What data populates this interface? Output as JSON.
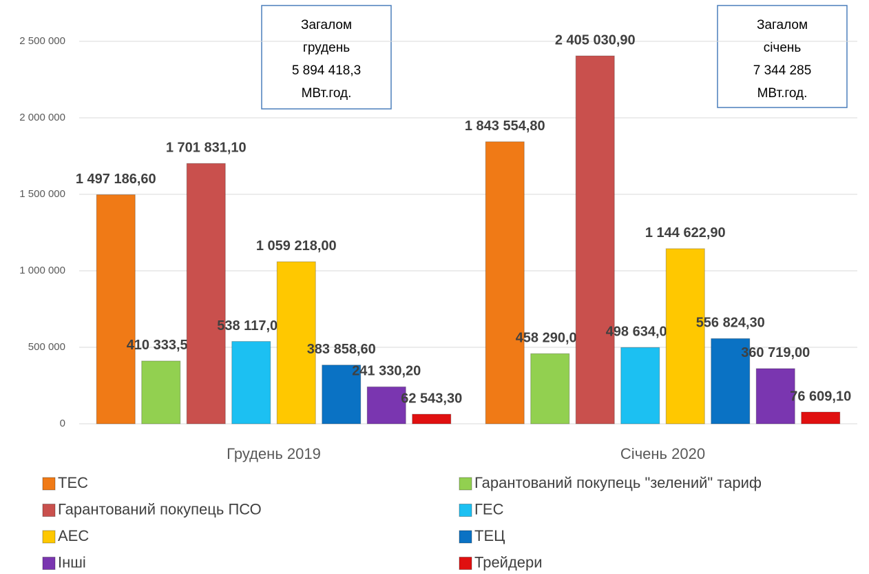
{
  "chart_data": {
    "type": "bar",
    "categories": [
      "Грудень 2019",
      "Січень 2020"
    ],
    "series": [
      {
        "name": "ТЕС",
        "color": "#f07a16",
        "values": [
          1497186.6,
          1843554.8
        ],
        "value_labels": [
          "1 497 186,60",
          "1 843 554,80"
        ]
      },
      {
        "name": "Гарантований покупець \"зелений\" тариф",
        "color": "#92d050",
        "values": [
          410333.5,
          458290.0
        ],
        "value_labels": [
          "410 333,50",
          "458 290,00"
        ]
      },
      {
        "name": "Гарантований покупець ПСО",
        "color": "#c9504d",
        "values": [
          1701831.1,
          2405030.9
        ],
        "value_labels": [
          "1 701 831,10",
          "2 405 030,90"
        ]
      },
      {
        "name": "ГЕС",
        "color": "#1cc0f2",
        "values": [
          538117.0,
          498634.0
        ],
        "value_labels": [
          "538 117,00",
          "498 634,00"
        ]
      },
      {
        "name": "АЕС",
        "color": "#ffc800",
        "values": [
          1059218.0,
          1144622.9
        ],
        "value_labels": [
          "1 059 218,00",
          "1 144 622,90"
        ]
      },
      {
        "name": "ТЕЦ",
        "color": "#0a72c4",
        "values": [
          383858.6,
          556824.3
        ],
        "value_labels": [
          "383 858,60",
          "556 824,30"
        ]
      },
      {
        "name": "Інші",
        "color": "#7a36b0",
        "values": [
          241330.2,
          360719.0
        ],
        "value_labels": [
          "241 330,20",
          "360 719,00"
        ]
      },
      {
        "name": "Трейдери",
        "color": "#e01010",
        "values": [
          62543.3,
          76609.1
        ],
        "value_labels": [
          "62 543,30",
          "76 609,10"
        ]
      }
    ],
    "ylim": [
      0,
      2500000
    ],
    "yticks": [
      0,
      {
        "value": 500000,
        "label": "500 000"
      },
      {
        "value": 1000000,
        "label": "1 000 000"
      },
      {
        "value": 1500000,
        "label": "1 500 000"
      },
      {
        "value": 2000000,
        "label": "2 000 000"
      },
      {
        "value": 2500000,
        "label": "2 500 000"
      }
    ],
    "grid": true,
    "legend": "bottom",
    "annotations": [
      {
        "lines": [
          "Загалом",
          "грудень",
          "5 894 418,3",
          "МВт.год."
        ]
      },
      {
        "lines": [
          "Загалом",
          "січень",
          "7 344 285",
          "МВт.год."
        ]
      }
    ]
  }
}
